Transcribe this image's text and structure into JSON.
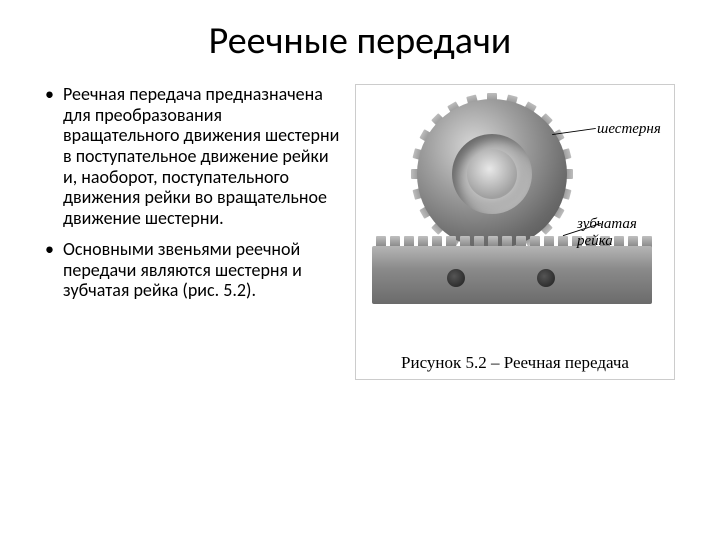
{
  "title": "Реечные передачи",
  "bullets": [
    "Реечная передача предназначена для преобразования вращательного движения шестерни в поступательное движение рейки и, наоборот, поступательного движения рейки во вращательное движение  шестерни.",
    "Основными звеньями реечной передачи являются шестерня и зубчатая рейка (рис. 5.2)."
  ],
  "figure": {
    "label_gear": "шестерня",
    "label_rack": "зубчатая рейка",
    "caption": "Рисунок 5.2 – Реечная передача",
    "gear_tooth_count": 24,
    "rack_tooth_count": 20,
    "colors": {
      "background": "#ffffff",
      "border": "#cccccc",
      "metal_light": "#d8d8d8",
      "metal_mid": "#9e9e9e",
      "metal_dark": "#6a6a6a",
      "text": "#000000"
    }
  }
}
